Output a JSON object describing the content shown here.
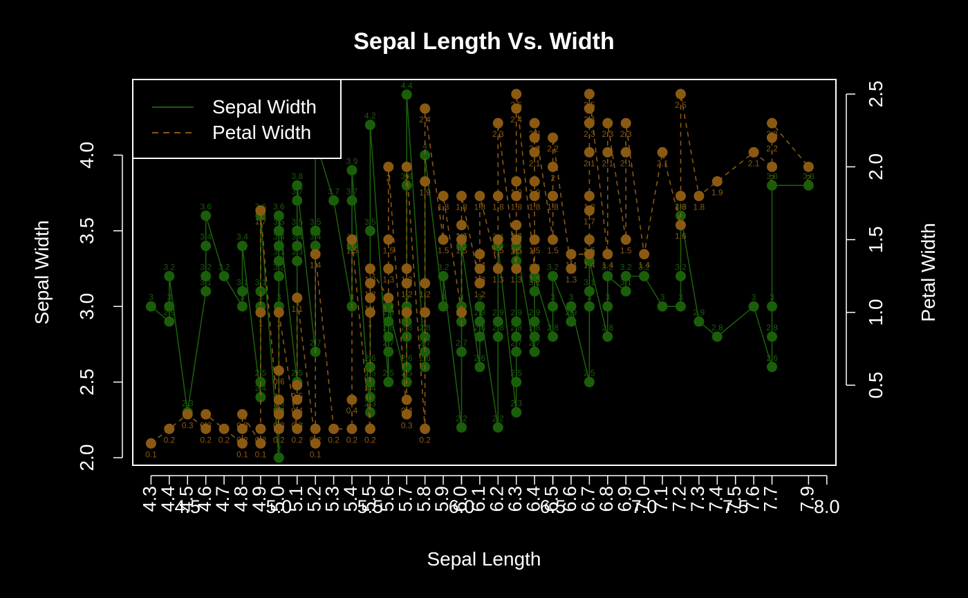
{
  "chart_data": {
    "type": "line",
    "title": "Sepal Length Vs. Width",
    "xlabel": "Sepal Length",
    "ylabel": "Sepal Width",
    "y2label": "Petal Width",
    "xlim": [
      4.2,
      8.05
    ],
    "ylim": [
      1.95,
      4.5
    ],
    "y2lim": [
      -0.05,
      2.6
    ],
    "xticks": [
      "4.3",
      "4.4",
      "4.5",
      "4.6",
      "4.7",
      "4.8",
      "4.9",
      "5.0",
      "5.1",
      "5.2",
      "5.3",
      "5.4",
      "5.5",
      "5.6",
      "5.7",
      "5.8",
      "5.9",
      "6.0",
      "6.1",
      "6.2",
      "6.3",
      "6.4",
      "6.5",
      "6.6",
      "6.7",
      "6.8",
      "6.9",
      "7.0",
      "7.1",
      "7.2",
      "7.3",
      "7.4",
      "7.5",
      "7.6",
      "7.7",
      "7.9"
    ],
    "xticks_extra": [
      "4.5",
      "5.0",
      "5.5",
      "6.0",
      "6.5",
      "7.0",
      "7.5",
      "8.0"
    ],
    "yticks": [
      "2.0",
      "2.5",
      "3.0",
      "3.5",
      "4.0"
    ],
    "y2ticks": [
      "0.5",
      "1.0",
      "1.5",
      "2.0",
      "2.5"
    ],
    "legend": {
      "position": "top-left",
      "entries": [
        "Sepal Width",
        "Petal Width"
      ]
    },
    "colors": {
      "sepal": "#1a5e0a",
      "petal": "#8b5a12",
      "fg": "#ffffff",
      "bg": "#000000"
    },
    "series": [
      {
        "name": "Sepal Width",
        "axis": "left",
        "style": "solid",
        "points": [
          [
            4.3,
            3.0
          ],
          [
            4.4,
            2.9
          ],
          [
            4.4,
            3.0
          ],
          [
            4.4,
            3.2
          ],
          [
            4.5,
            2.3
          ],
          [
            4.6,
            3.1
          ],
          [
            4.6,
            3.2
          ],
          [
            4.6,
            3.4
          ],
          [
            4.6,
            3.6
          ],
          [
            4.7,
            3.2
          ],
          [
            4.8,
            3.0
          ],
          [
            4.8,
            3.1
          ],
          [
            4.8,
            3.4
          ],
          [
            4.9,
            2.4
          ],
          [
            4.9,
            2.5
          ],
          [
            4.9,
            3.0
          ],
          [
            4.9,
            3.1
          ],
          [
            4.9,
            3.6
          ],
          [
            5.0,
            2.0
          ],
          [
            5.0,
            2.3
          ],
          [
            5.0,
            3.0
          ],
          [
            5.0,
            3.2
          ],
          [
            5.0,
            3.3
          ],
          [
            5.0,
            3.4
          ],
          [
            5.0,
            3.5
          ],
          [
            5.0,
            3.6
          ],
          [
            5.1,
            2.5
          ],
          [
            5.1,
            3.3
          ],
          [
            5.1,
            3.4
          ],
          [
            5.1,
            3.5
          ],
          [
            5.1,
            3.7
          ],
          [
            5.1,
            3.8
          ],
          [
            5.2,
            2.7
          ],
          [
            5.2,
            3.4
          ],
          [
            5.2,
            3.5
          ],
          [
            5.2,
            4.1
          ],
          [
            5.3,
            3.7
          ],
          [
            5.4,
            3.0
          ],
          [
            5.4,
            3.4
          ],
          [
            5.4,
            3.7
          ],
          [
            5.4,
            3.9
          ],
          [
            5.5,
            2.3
          ],
          [
            5.5,
            2.4
          ],
          [
            5.5,
            2.5
          ],
          [
            5.5,
            2.6
          ],
          [
            5.5,
            3.5
          ],
          [
            5.5,
            4.2
          ],
          [
            5.6,
            2.5
          ],
          [
            5.6,
            2.7
          ],
          [
            5.6,
            2.8
          ],
          [
            5.6,
            2.9
          ],
          [
            5.6,
            3.0
          ],
          [
            5.7,
            2.5
          ],
          [
            5.7,
            2.6
          ],
          [
            5.7,
            2.8
          ],
          [
            5.7,
            2.9
          ],
          [
            5.7,
            3.0
          ],
          [
            5.7,
            3.8
          ],
          [
            5.7,
            4.4
          ],
          [
            5.8,
            2.6
          ],
          [
            5.8,
            2.7
          ],
          [
            5.8,
            2.8
          ],
          [
            5.8,
            4.0
          ],
          [
            5.9,
            3.0
          ],
          [
            5.9,
            3.2
          ],
          [
            6.0,
            2.2
          ],
          [
            6.0,
            2.7
          ],
          [
            6.0,
            2.9
          ],
          [
            6.0,
            3.0
          ],
          [
            6.0,
            3.4
          ],
          [
            6.1,
            2.6
          ],
          [
            6.1,
            2.8
          ],
          [
            6.1,
            2.9
          ],
          [
            6.1,
            3.0
          ],
          [
            6.2,
            2.2
          ],
          [
            6.2,
            2.8
          ],
          [
            6.2,
            2.9
          ],
          [
            6.2,
            3.4
          ],
          [
            6.3,
            2.3
          ],
          [
            6.3,
            2.5
          ],
          [
            6.3,
            2.7
          ],
          [
            6.3,
            2.8
          ],
          [
            6.3,
            2.9
          ],
          [
            6.3,
            3.3
          ],
          [
            6.3,
            3.4
          ],
          [
            6.4,
            2.7
          ],
          [
            6.4,
            2.8
          ],
          [
            6.4,
            2.9
          ],
          [
            6.4,
            3.1
          ],
          [
            6.4,
            3.2
          ],
          [
            6.5,
            2.8
          ],
          [
            6.5,
            3.0
          ],
          [
            6.5,
            3.2
          ],
          [
            6.6,
            2.9
          ],
          [
            6.6,
            3.0
          ],
          [
            6.7,
            2.5
          ],
          [
            6.7,
            3.0
          ],
          [
            6.7,
            3.1
          ],
          [
            6.7,
            3.3
          ],
          [
            6.8,
            2.8
          ],
          [
            6.8,
            3.0
          ],
          [
            6.8,
            3.2
          ],
          [
            6.9,
            3.1
          ],
          [
            6.9,
            3.2
          ],
          [
            7.0,
            3.2
          ],
          [
            7.1,
            3.0
          ],
          [
            7.2,
            3.0
          ],
          [
            7.2,
            3.2
          ],
          [
            7.2,
            3.6
          ],
          [
            7.3,
            2.9
          ],
          [
            7.4,
            2.8
          ],
          [
            7.6,
            3.0
          ],
          [
            7.7,
            2.6
          ],
          [
            7.7,
            2.8
          ],
          [
            7.7,
            3.0
          ],
          [
            7.7,
            3.8
          ],
          [
            7.9,
            3.8
          ]
        ]
      },
      {
        "name": "Petal Width",
        "axis": "right",
        "style": "dashed",
        "points": [
          [
            4.3,
            0.1
          ],
          [
            4.4,
            0.2
          ],
          [
            4.5,
            0.3
          ],
          [
            4.6,
            0.2
          ],
          [
            4.6,
            0.3
          ],
          [
            4.7,
            0.2
          ],
          [
            4.8,
            0.1
          ],
          [
            4.8,
            0.2
          ],
          [
            4.8,
            0.3
          ],
          [
            4.9,
            0.1
          ],
          [
            4.9,
            0.2
          ],
          [
            4.9,
            1.0
          ],
          [
            4.9,
            1.7
          ],
          [
            5.0,
            0.2
          ],
          [
            5.0,
            0.3
          ],
          [
            5.0,
            0.4
          ],
          [
            5.0,
            0.6
          ],
          [
            5.0,
            1.0
          ],
          [
            5.1,
            0.2
          ],
          [
            5.1,
            0.3
          ],
          [
            5.1,
            0.4
          ],
          [
            5.1,
            0.5
          ],
          [
            5.1,
            1.1
          ],
          [
            5.2,
            0.1
          ],
          [
            5.2,
            0.2
          ],
          [
            5.2,
            1.4
          ],
          [
            5.3,
            0.2
          ],
          [
            5.4,
            0.2
          ],
          [
            5.4,
            0.4
          ],
          [
            5.4,
            1.5
          ],
          [
            5.5,
            0.2
          ],
          [
            5.5,
            1.0
          ],
          [
            5.5,
            1.1
          ],
          [
            5.5,
            1.2
          ],
          [
            5.5,
            1.3
          ],
          [
            5.6,
            1.1
          ],
          [
            5.6,
            1.3
          ],
          [
            5.6,
            1.5
          ],
          [
            5.6,
            2.0
          ],
          [
            5.7,
            0.3
          ],
          [
            5.7,
            0.4
          ],
          [
            5.7,
            1.0
          ],
          [
            5.7,
            1.2
          ],
          [
            5.7,
            1.3
          ],
          [
            5.7,
            2.0
          ],
          [
            5.8,
            0.2
          ],
          [
            5.8,
            1.0
          ],
          [
            5.8,
            1.2
          ],
          [
            5.8,
            1.9
          ],
          [
            5.8,
            2.4
          ],
          [
            5.9,
            1.5
          ],
          [
            5.9,
            1.8
          ],
          [
            6.0,
            1.0
          ],
          [
            6.0,
            1.5
          ],
          [
            6.0,
            1.6
          ],
          [
            6.0,
            1.8
          ],
          [
            6.1,
            1.2
          ],
          [
            6.1,
            1.3
          ],
          [
            6.1,
            1.4
          ],
          [
            6.1,
            1.8
          ],
          [
            6.2,
            1.3
          ],
          [
            6.2,
            1.5
          ],
          [
            6.2,
            1.8
          ],
          [
            6.2,
            2.3
          ],
          [
            6.3,
            1.3
          ],
          [
            6.3,
            1.5
          ],
          [
            6.3,
            1.6
          ],
          [
            6.3,
            1.8
          ],
          [
            6.3,
            1.9
          ],
          [
            6.3,
            2.4
          ],
          [
            6.3,
            2.5
          ],
          [
            6.4,
            1.3
          ],
          [
            6.4,
            1.5
          ],
          [
            6.4,
            1.8
          ],
          [
            6.4,
            1.9
          ],
          [
            6.4,
            2.1
          ],
          [
            6.4,
            2.2
          ],
          [
            6.4,
            2.3
          ],
          [
            6.5,
            1.5
          ],
          [
            6.5,
            1.8
          ],
          [
            6.5,
            2.0
          ],
          [
            6.5,
            2.2
          ],
          [
            6.6,
            1.3
          ],
          [
            6.6,
            1.4
          ],
          [
            6.7,
            1.4
          ],
          [
            6.7,
            1.5
          ],
          [
            6.7,
            1.7
          ],
          [
            6.7,
            1.8
          ],
          [
            6.7,
            2.1
          ],
          [
            6.7,
            2.3
          ],
          [
            6.7,
            2.4
          ],
          [
            6.7,
            2.5
          ],
          [
            6.8,
            1.4
          ],
          [
            6.8,
            2.1
          ],
          [
            6.8,
            2.3
          ],
          [
            6.9,
            1.5
          ],
          [
            6.9,
            2.1
          ],
          [
            6.9,
            2.3
          ],
          [
            7.0,
            1.4
          ],
          [
            7.1,
            2.1
          ],
          [
            7.2,
            1.6
          ],
          [
            7.2,
            1.8
          ],
          [
            7.2,
            2.5
          ],
          [
            7.3,
            1.8
          ],
          [
            7.4,
            1.9
          ],
          [
            7.6,
            2.1
          ],
          [
            7.7,
            2.0
          ],
          [
            7.7,
            2.2
          ],
          [
            7.7,
            2.3
          ],
          [
            7.9,
            2.0
          ]
        ]
      }
    ]
  }
}
